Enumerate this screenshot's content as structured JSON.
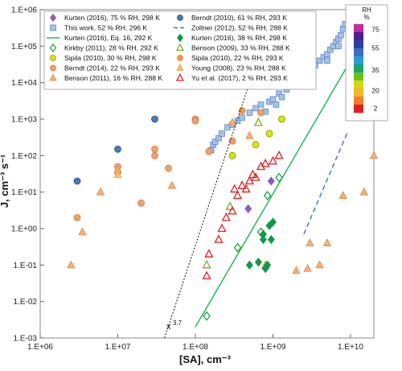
{
  "chart_data": {
    "type": "scatter",
    "title": "",
    "xlabel": "[SA], cm⁻³",
    "ylabel": "J, cm⁻³ s⁻¹",
    "xscale": "log",
    "yscale": "log",
    "xlim": [
      1000000,
      20000000000
    ],
    "ylim": [
      0.001,
      1000000
    ],
    "xticks": [
      "1.E+06",
      "1.E+07",
      "1.E+08",
      "1.E+09",
      "1.E+10"
    ],
    "yticks": [
      "1.E-03",
      "1.E-02",
      "1.E-01",
      "1.E+00",
      "1.E+01",
      "1.E+02",
      "1.E+03",
      "1.E+04",
      "1.E+05",
      "1.E+06"
    ],
    "grid": false,
    "legend_position": "top-left",
    "annotation": "x^3.7",
    "colorbar": {
      "title": "RH",
      "unit": "%",
      "ticks": [
        "75",
        "55",
        "35",
        "20",
        "2"
      ],
      "colors": [
        "#c12a9e",
        "#4a1f8c",
        "#2a3fa0",
        "#3a6ec2",
        "#2f9ad6",
        "#18a36f",
        "#6cc21d",
        "#d5d51a",
        "#f0b82a",
        "#f47e2d",
        "#e11e22"
      ]
    },
    "series": [
      {
        "name": "Kurten (2016), 75 % RH, 298 K",
        "marker": "diamond",
        "color": "#8e5bbd",
        "fill": "#8e5bbd",
        "points": [
          [
            480000000,
            3.5
          ],
          [
            950000000,
            20
          ]
        ]
      },
      {
        "name": "This work, 52 % RH, 296 K",
        "marker": "square",
        "color": "#5b88c7",
        "fill": "#a7c2e6",
        "points": [
          [
            160000000,
            140
          ],
          [
            170000000,
            200
          ],
          [
            180000000,
            240
          ],
          [
            200000000,
            300
          ],
          [
            220000000,
            400
          ],
          [
            260000000,
            600
          ],
          [
            300000000,
            700
          ],
          [
            350000000,
            900
          ],
          [
            400000000,
            1100
          ],
          [
            500000000,
            1500
          ],
          [
            600000000,
            2000
          ],
          [
            700000000,
            2500
          ],
          [
            800000000,
            1600
          ],
          [
            900000000,
            3000
          ],
          [
            1000000000,
            3500
          ],
          [
            1100000000,
            2500
          ],
          [
            1200000000,
            5000
          ],
          [
            1300000000,
            4000
          ],
          [
            1500000000,
            6500
          ],
          [
            1700000000,
            8000
          ],
          [
            2000000000,
            10000
          ],
          [
            2300000000,
            12000
          ],
          [
            2600000000,
            17000
          ],
          [
            3000000000,
            22000
          ],
          [
            3500000000,
            30000
          ],
          [
            4000000000,
            40000
          ],
          [
            4500000000,
            50000
          ],
          [
            5000000000,
            60000
          ],
          [
            5500000000,
            80000
          ],
          [
            6000000000,
            100000
          ],
          [
            6500000000,
            130000
          ],
          [
            7000000000,
            160000
          ],
          [
            7500000000,
            200000
          ],
          [
            8000000000,
            300000
          ],
          [
            8500000000,
            400000
          ],
          [
            3000000000,
            15000
          ],
          [
            5000000000,
            40000
          ],
          [
            7000000000,
            100000
          ]
        ]
      },
      {
        "name": "Kurten (2016), Eq. 16, 292 K",
        "marker": "line",
        "color": "#19b44a",
        "points": [
          [
            100000000,
            0.002
          ],
          [
            10000000000,
            40000
          ]
        ]
      },
      {
        "name": "Kirkby (2011), 28 % RH, 292 K",
        "marker": "diamond",
        "color": "#22a347",
        "fill": "none",
        "points": [
          [
            140000000,
            0.004
          ],
          [
            350000000,
            0.3
          ],
          [
            700000000,
            0.8
          ],
          [
            850000000,
            8
          ],
          [
            1200000000,
            25
          ]
        ]
      },
      {
        "name": "Sipila (2010), 30 % RH, 298 K",
        "marker": "circle",
        "color": "#8e8e00",
        "fill": "#d7e800",
        "points": [
          [
            300000000,
            100
          ],
          [
            600000000,
            200
          ],
          [
            900000000,
            400
          ],
          [
            1300000000,
            1000
          ]
        ]
      },
      {
        "name": "Berndt (2014), 22 % RH, 293 K",
        "marker": "circle",
        "color": "#c87a3f",
        "fill": "#f0a070",
        "points": [
          [
            3000000,
            2
          ],
          [
            10000000,
            35
          ],
          [
            10000000,
            50
          ],
          [
            20000000,
            5
          ],
          [
            30000000,
            150
          ],
          [
            30000000,
            100
          ],
          [
            45000000,
            45
          ],
          [
            100000000,
            1000
          ],
          [
            100000000,
            900
          ],
          [
            150000000,
            130
          ],
          [
            300000000,
            250
          ],
          [
            700000000,
            1500
          ]
        ]
      },
      {
        "name": "Benson (2011), 16 % RH, 288 K",
        "marker": "triangle",
        "color": "#d48a45",
        "fill": "#f8b074",
        "points": [
          [
            2500000,
            0.1
          ],
          [
            3500000,
            0.8
          ],
          [
            6000000,
            10
          ],
          [
            10000000,
            40
          ],
          [
            50000000,
            15
          ],
          [
            300000000,
            800
          ],
          [
            500000000,
            350
          ],
          [
            800000000,
            0.1
          ],
          [
            2000000000,
            0.07
          ],
          [
            2800000000,
            0.08
          ],
          [
            3000000000,
            0.4
          ],
          [
            4000000000,
            0.1
          ],
          [
            5000000000,
            0.4
          ],
          [
            8000000000,
            8
          ],
          [
            15000000000,
            10
          ],
          [
            20000000000,
            100
          ]
        ]
      },
      {
        "name": "Berndt (2010), 61 % RH, 293 K",
        "marker": "circle",
        "color": "#2b4e8c",
        "fill": "#4c79b0",
        "points": [
          [
            3000000,
            20
          ],
          [
            10000000,
            150
          ],
          [
            30000000,
            1000
          ]
        ]
      },
      {
        "name": "Zollner (2012), 52 % RH, 288 K",
        "marker": "dash",
        "color": "#2e75c6",
        "points": [
          [
            2500000000,
            0.7
          ],
          [
            9000000000,
            400
          ]
        ]
      },
      {
        "name": "Kurten (2016), 38 % RH, 298 K",
        "marker": "diamond",
        "color": "#0f9a47",
        "fill": "#0f9a47",
        "points": [
          [
            500000000,
            0.1
          ],
          [
            650000000,
            0.12
          ],
          [
            750000000,
            0.5
          ],
          [
            800000000,
            0.08
          ],
          [
            850000000,
            0.1
          ],
          [
            900000000,
            1.2
          ],
          [
            950000000,
            0.5
          ],
          [
            1000000000,
            1.5
          ],
          [
            750000000,
            0.7
          ]
        ]
      },
      {
        "name": "Benson (2009), 33 % RH, 288 K",
        "marker": "triangle",
        "color": "#7aaa28",
        "fill": "none",
        "points": [
          [
            140000000,
            0.1
          ],
          [
            280000000,
            4
          ],
          [
            650000000,
            800
          ]
        ]
      },
      {
        "name": "Sipila (2010), 22 % RH, 293 K",
        "marker": "circle",
        "color": "#e07a2e",
        "fill": "#f49a45",
        "points": [
          [
            400000000,
            1700
          ]
        ]
      },
      {
        "name": "Young (2008), 23 % RH, 288 K",
        "marker": "triangle",
        "color": "#e0a04a",
        "fill": "#f7c173",
        "points": [
          [
            10000000,
            30
          ]
        ]
      },
      {
        "name": "Yu et al. (2017), 2 % RH, 293 K",
        "marker": "triangle",
        "color": "#e11e22",
        "fill": "none",
        "points": [
          [
            140000000,
            0.05
          ],
          [
            150000000,
            0.2
          ],
          [
            200000000,
            0.5
          ],
          [
            220000000,
            1
          ],
          [
            250000000,
            2
          ],
          [
            300000000,
            3
          ],
          [
            320000000,
            12
          ],
          [
            350000000,
            8
          ],
          [
            400000000,
            15
          ],
          [
            450000000,
            12
          ],
          [
            500000000,
            20
          ],
          [
            550000000,
            30
          ],
          [
            600000000,
            25
          ],
          [
            700000000,
            50
          ],
          [
            800000000,
            60
          ],
          [
            1000000000,
            70
          ],
          [
            1200000000,
            100
          ]
        ]
      },
      {
        "name": "",
        "marker": "dotted-line",
        "color": "#111111",
        "points": [
          [
            40000000,
            0.001
          ],
          [
            800000000,
            200000
          ]
        ]
      }
    ]
  }
}
